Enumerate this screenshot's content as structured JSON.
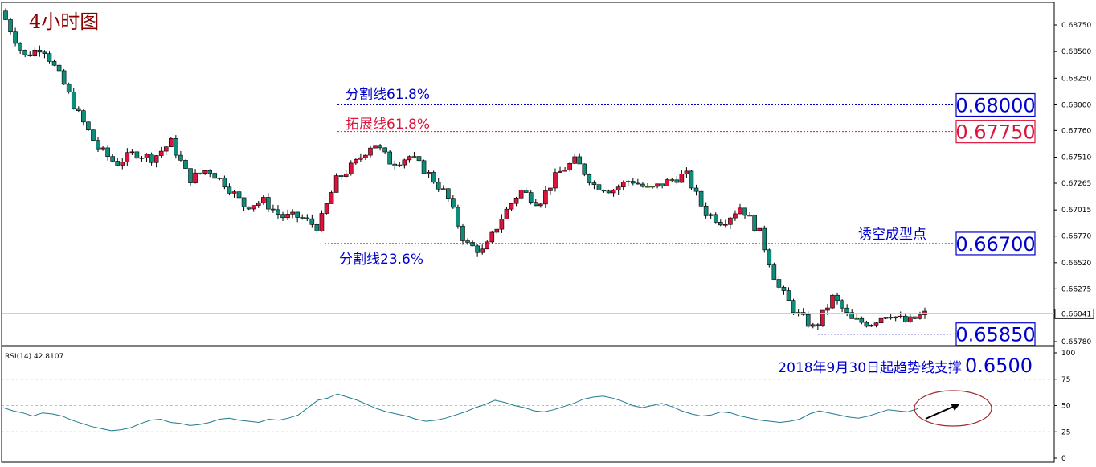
{
  "chart_data": {
    "type": "candlestick",
    "panels": [
      {
        "name": "price",
        "title": "4小时图",
        "y_ticks": [
          "0.68750",
          "0.68500",
          "0.68250",
          "0.68000",
          "0.67760",
          "0.67510",
          "0.67265",
          "0.67015",
          "0.66770",
          "0.66520",
          "0.66275",
          "0.66041",
          "0.65780"
        ],
        "current_price": "0.66041",
        "colors": {
          "up": "#dc143c",
          "down": "#0e8c7c",
          "doji": "#7cfc00"
        },
        "levels": [
          {
            "label": "分割线61.8%",
            "value": 0.68,
            "box": "0.68000",
            "color": "#0000cd",
            "label_color": "#0000cd"
          },
          {
            "label": "拓展线61.8%",
            "value": 0.6775,
            "box": "0.67750",
            "color": "#dc143c",
            "label_color": "#dc143c"
          },
          {
            "label": "诱空成型点",
            "value": 0.667,
            "box": "0.66700",
            "color": "#0000cd",
            "label_color": "#0000cd"
          },
          {
            "label": "分割线23.6%",
            "value": 0.667,
            "box": "",
            "color": "#0000cd",
            "label_color": "#0000cd"
          },
          {
            "label": "",
            "value": 0.6585,
            "box": "0.65850",
            "color": "#0000cd",
            "label_color": "#0000cd"
          }
        ],
        "close_path": [
          0.688,
          0.6845,
          0.6855,
          0.6825,
          0.679,
          0.676,
          0.6745,
          0.6755,
          0.675,
          0.6765,
          0.673,
          0.674,
          0.6725,
          0.6705,
          0.671,
          0.6695,
          0.6695,
          0.6685,
          0.673,
          0.6745,
          0.6765,
          0.6745,
          0.6752,
          0.6735,
          0.6715,
          0.667,
          0.6662,
          0.6695,
          0.672,
          0.6708,
          0.6735,
          0.6748,
          0.6725,
          0.672,
          0.673,
          0.672,
          0.6728,
          0.6735,
          0.67,
          0.669,
          0.6705,
          0.668,
          0.663,
          0.6605,
          0.659,
          0.662,
          0.6598,
          0.6595,
          0.6605,
          0.6596,
          0.6604
        ]
      },
      {
        "name": "rsi",
        "label": "RSI(14) 42.8107",
        "y_ticks": [
          "100",
          "75",
          "50",
          "25",
          "0"
        ],
        "ylim": [
          0,
          100
        ],
        "levels": [
          75,
          50,
          25
        ],
        "annotation": {
          "prefix": "2018年9月30日起趋势线支撑",
          "value": "0.6500",
          "color": "#0000cd"
        },
        "values": [
          48,
          45,
          43,
          40,
          43,
          42,
          40,
          36,
          33,
          30,
          28,
          26,
          27,
          29,
          33,
          36,
          37,
          34,
          33,
          31,
          32,
          34,
          37,
          38,
          36,
          35,
          34,
          37,
          36,
          38,
          41,
          48,
          55,
          57,
          61,
          58,
          55,
          51,
          47,
          44,
          42,
          40,
          37,
          35,
          36,
          38,
          41,
          44,
          48,
          51,
          55,
          53,
          50,
          48,
          45,
          44,
          46,
          49,
          52,
          56,
          58,
          59,
          57,
          54,
          50,
          48,
          50,
          52,
          49,
          45,
          42,
          40,
          41,
          44,
          43,
          40,
          38,
          36,
          35,
          34,
          35,
          37,
          42,
          45,
          43,
          41,
          39,
          38,
          40,
          43,
          46,
          45,
          44,
          47
        ]
      }
    ]
  }
}
